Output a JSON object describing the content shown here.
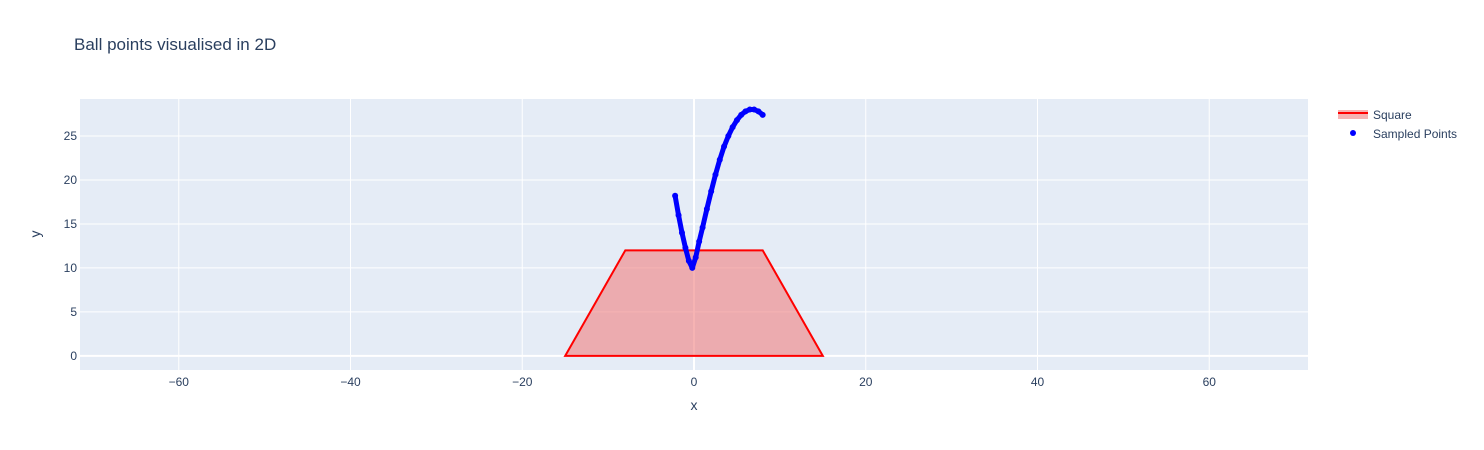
{
  "chart_data": {
    "type": "scatter",
    "title": "Ball points visualised in 2D",
    "xlabel": "x",
    "ylabel": "y",
    "xlim": [
      -71.5,
      71.5
    ],
    "ylim": [
      -1.6,
      29.2
    ],
    "xticks": [
      -60,
      -40,
      -20,
      0,
      20,
      40,
      60
    ],
    "xtick_labels": [
      "−60",
      "−40",
      "−20",
      "0",
      "20",
      "40",
      "60"
    ],
    "yticks": [
      0,
      5,
      10,
      15,
      20,
      25
    ],
    "ytick_labels": [
      "0",
      "5",
      "10",
      "15",
      "20",
      "25"
    ],
    "grid": true,
    "legend_position": "top-right",
    "colors": {
      "plot_bg": "#e5ecf6",
      "grid": "#ffffff",
      "square_line": "#ff0000",
      "square_fill": "#f08080",
      "points": "#0000ff"
    },
    "series": [
      {
        "name": "Square",
        "kind": "filled-polygon",
        "x": [
          -15,
          -8,
          8,
          15,
          -15
        ],
        "y": [
          0,
          12,
          12,
          0,
          0
        ]
      },
      {
        "name": "Sampled Points",
        "kind": "markers",
        "x": [
          -2.2,
          -1.8,
          -1.4,
          -1.0,
          -0.6,
          -0.2,
          0.2,
          0.6,
          1.0,
          1.5,
          2.0,
          2.5,
          3.0,
          3.5,
          4.0,
          4.5,
          5.0,
          5.5,
          6.0,
          6.5,
          7.0,
          7.5,
          8.0
        ],
        "y": [
          18.2,
          16.0,
          14.0,
          12.3,
          10.8,
          10.0,
          11.2,
          13.0,
          14.6,
          16.7,
          18.7,
          20.6,
          22.3,
          23.8,
          25.0,
          26.0,
          26.8,
          27.4,
          27.8,
          28.0,
          28.0,
          27.8,
          27.4
        ]
      }
    ]
  }
}
